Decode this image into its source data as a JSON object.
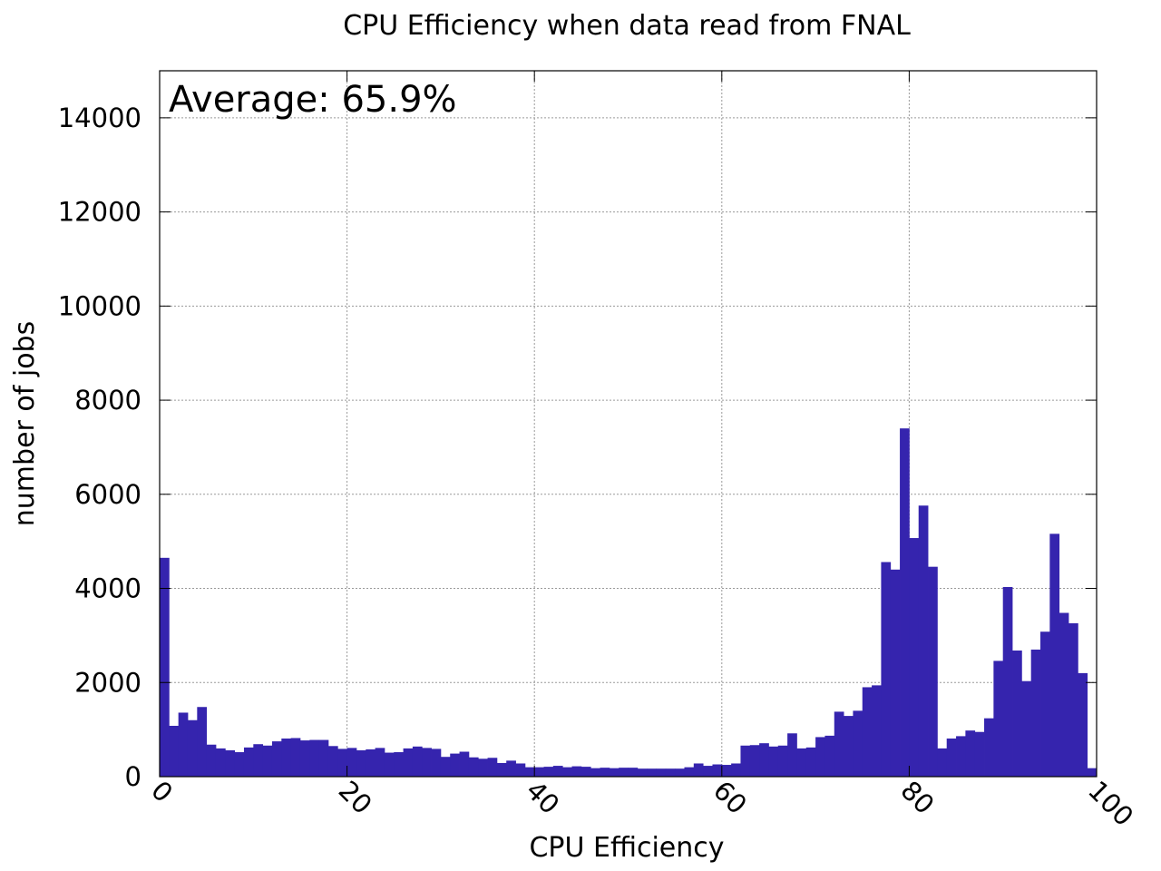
{
  "chart_data": {
    "type": "bar",
    "title": "CPU Efficiency when data read from FNAL",
    "xlabel": "CPU Efficiency",
    "ylabel": "number of jobs",
    "annotation": "Average: 65.9%",
    "xlim": [
      0,
      100
    ],
    "ylim": [
      0,
      15000
    ],
    "xticks": [
      0,
      20,
      40,
      60,
      80,
      100
    ],
    "xtick_labels": [
      "0",
      "20",
      "40",
      "60",
      "80",
      "100"
    ],
    "yticks": [
      0,
      2000,
      4000,
      6000,
      8000,
      10000,
      12000,
      14000
    ],
    "ytick_labels": [
      "0",
      "2000",
      "4000",
      "6000",
      "8000",
      "10000",
      "12000",
      "14000"
    ],
    "grid": true,
    "bar_color": "#3524ae",
    "bin_width": 1,
    "bin_starts": [
      0,
      1,
      2,
      3,
      4,
      5,
      6,
      7,
      8,
      9,
      10,
      11,
      12,
      13,
      14,
      15,
      16,
      17,
      18,
      19,
      20,
      21,
      22,
      23,
      24,
      25,
      26,
      27,
      28,
      29,
      30,
      31,
      32,
      33,
      34,
      35,
      36,
      37,
      38,
      39,
      40,
      41,
      42,
      43,
      44,
      45,
      46,
      47,
      48,
      49,
      50,
      51,
      52,
      53,
      54,
      55,
      56,
      57,
      58,
      59,
      60,
      61,
      62,
      63,
      64,
      65,
      66,
      67,
      68,
      69,
      70,
      71,
      72,
      73,
      74,
      75,
      76,
      77,
      78,
      79,
      80,
      81,
      82,
      83,
      84,
      85,
      86,
      87,
      88,
      89,
      90,
      91,
      92,
      93,
      94,
      95,
      96,
      97,
      98,
      99
    ],
    "values": [
      4650,
      1080,
      1360,
      1200,
      1480,
      680,
      600,
      560,
      520,
      620,
      690,
      660,
      750,
      810,
      820,
      770,
      780,
      780,
      650,
      590,
      610,
      560,
      580,
      610,
      510,
      520,
      600,
      640,
      610,
      590,
      420,
      490,
      530,
      410,
      380,
      400,
      290,
      340,
      280,
      200,
      200,
      210,
      230,
      200,
      220,
      210,
      180,
      190,
      180,
      190,
      190,
      170,
      170,
      170,
      170,
      170,
      200,
      280,
      230,
      260,
      250,
      280,
      660,
      670,
      710,
      640,
      660,
      920,
      600,
      620,
      840,
      870,
      1380,
      1290,
      1400,
      1900,
      1940,
      4560,
      4400,
      7400,
      5070,
      5760,
      4460,
      600,
      810,
      860,
      980,
      950,
      1240,
      2460,
      4030,
      2680,
      2030,
      2700,
      3080,
      5160,
      3480,
      3260,
      2200,
      180
    ]
  }
}
